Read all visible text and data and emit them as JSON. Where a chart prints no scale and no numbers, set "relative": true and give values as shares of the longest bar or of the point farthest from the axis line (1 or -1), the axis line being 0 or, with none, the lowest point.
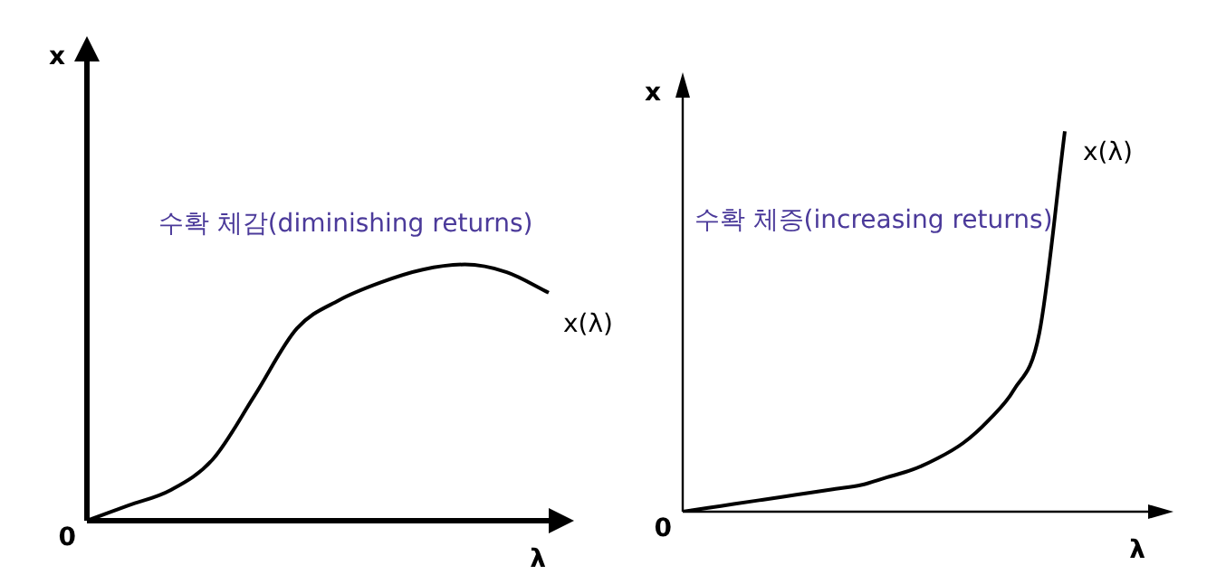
{
  "chart_data": [
    {
      "type": "line",
      "relative": true,
      "xlabel": "λ",
      "ylabel": "x",
      "annotations": [
        "수확 체감(diminishing returns)",
        "0"
      ],
      "categories": [
        null,
        null,
        null,
        null,
        null,
        null,
        null,
        null,
        null,
        null,
        null,
        null
      ],
      "legend": false,
      "marker": "none",
      "line_style": "solid",
      "series": [
        {
          "name": "x(λ)",
          "color": "#000000",
          "values": [
            0,
            0.06,
            0.12,
            0.24,
            0.49,
            0.75,
            0.86,
            0.93,
            0.98,
            1,
            0.97,
            0.89
          ]
        }
      ]
    },
    {
      "type": "line",
      "relative": true,
      "xlabel": "λ",
      "ylabel": "x",
      "annotations": [
        "수확 체증(increasing returns)",
        "0"
      ],
      "categories": [
        null,
        null,
        null,
        null,
        null,
        null,
        null,
        null,
        null,
        null,
        null,
        null,
        null,
        null,
        null,
        null
      ],
      "legend": false,
      "marker": "none",
      "line_style": "solid",
      "series": [
        {
          "name": "x(λ)",
          "color": "#000000",
          "values": [
            0,
            0.01,
            0.02,
            0.03,
            0.04,
            0.05,
            0.06,
            0.07,
            0.09,
            0.11,
            0.14,
            0.18,
            0.24,
            0.32,
            0.47,
            1
          ]
        }
      ]
    }
  ]
}
